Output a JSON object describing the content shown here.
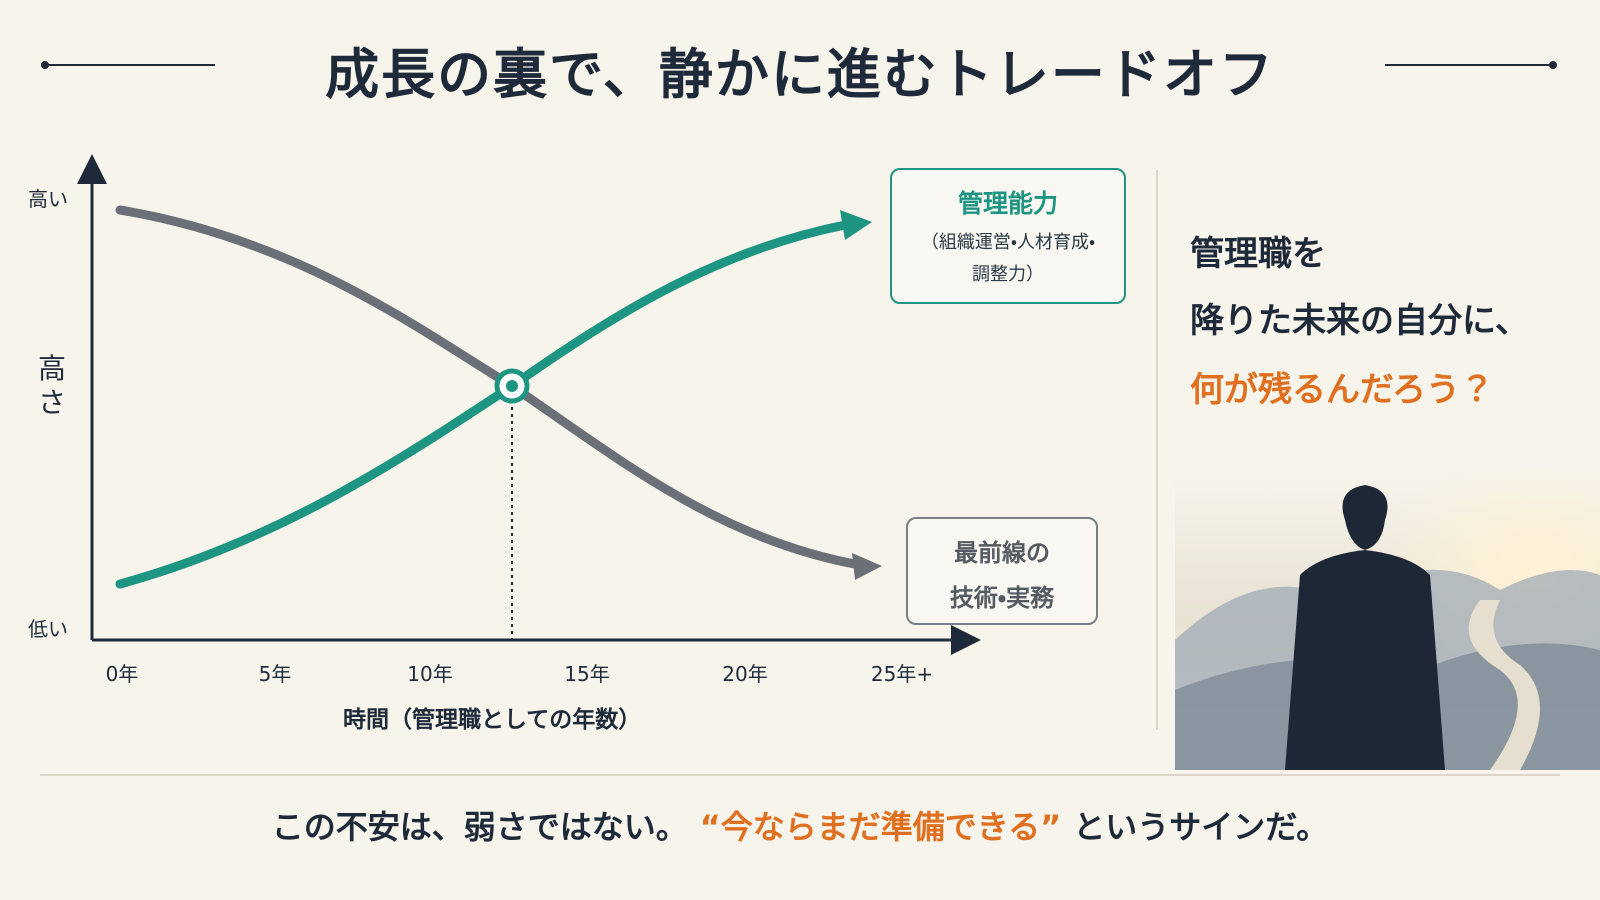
{
  "title": "成長の裏で、静かに進むトレードオフ",
  "graph": {
    "y_high": "高い",
    "y_label": [
      "高",
      "さ"
    ],
    "y_low": "低い",
    "x_ticks": [
      "0年",
      "5年",
      "10年",
      "15年",
      "20年",
      "25年+"
    ],
    "x_label": "時間（管理職としての年数）",
    "rising": {
      "title": "管理能力",
      "detail": [
        "（組織運営・人材育成・",
        "調整力）"
      ]
    },
    "falling": {
      "lines": [
        "最前線の",
        "技術・実務"
      ]
    }
  },
  "question": {
    "lines": [
      "管理職を",
      "降りた未来の自分に、"
    ],
    "emphasis": "何が残るんだろう？"
  },
  "footer": {
    "prefix": "この不安は、弱さではない。",
    "highlight": "“今ならまだ準備できる”",
    "suffix": "というサインだ。"
  }
}
